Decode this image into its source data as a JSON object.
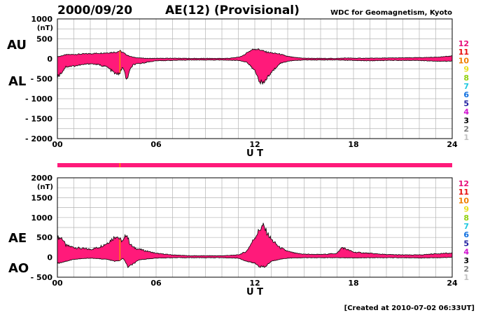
{
  "header": {
    "date": "2000/09/20",
    "title": "AE(12) (Provisional)",
    "source": "WDC for Geomagnetism, Kyoto"
  },
  "footer": {
    "created": "[Created at 2010-07-02 06:33UT]"
  },
  "legend": {
    "items": [
      {
        "label": "12",
        "color": "#e8107a"
      },
      {
        "label": "11",
        "color": "#e81010"
      },
      {
        "label": "10",
        "color": "#f08000"
      },
      {
        "label": "9",
        "color": "#e8e020"
      },
      {
        "label": "8",
        "color": "#90d010"
      },
      {
        "label": "7",
        "color": "#20c8e0"
      },
      {
        "label": "6",
        "color": "#1070e0"
      },
      {
        "label": "5",
        "color": "#2020a0"
      },
      {
        "label": "4",
        "color": "#d010d0"
      },
      {
        "label": "3",
        "color": "#000000"
      },
      {
        "label": "2",
        "color": "#808080"
      },
      {
        "label": "1",
        "color": "#c0c0c0"
      }
    ]
  },
  "coverage_bar": {
    "color": "#ff1a7a"
  },
  "chart_data": [
    {
      "type": "area",
      "unit": "(nT)",
      "upper_label": "AU",
      "lower_label": "AL",
      "xlabel": "U T",
      "xlim": [
        0,
        24
      ],
      "ylim": [
        -2000,
        1000
      ],
      "yticks": [
        1000,
        500,
        0,
        -500,
        -1000,
        -1500,
        -2000
      ],
      "ytick_labels": [
        "1000",
        "500",
        "0",
        "- 500",
        "- 1000",
        "- 1500",
        "- 2000"
      ],
      "xticks": [
        0,
        6,
        12,
        18,
        24
      ],
      "xtick_labels": [
        "00",
        "06",
        "12",
        "18",
        "24"
      ],
      "fill_color": "#ff1a7a",
      "series": [
        {
          "name": "AU",
          "x": [
            0,
            0.5,
            1,
            1.5,
            2,
            2.5,
            3,
            3.3,
            3.6,
            3.8,
            4,
            4.3,
            4.6,
            5,
            5.5,
            6,
            7,
            8,
            9,
            10,
            10.5,
            11,
            11.3,
            11.5,
            11.8,
            12,
            12.3,
            12.6,
            13,
            13.5,
            14,
            14.5,
            15,
            16,
            17,
            17.5,
            18,
            19,
            20,
            21,
            22,
            23,
            24
          ],
          "values": [
            50,
            100,
            110,
            120,
            130,
            140,
            150,
            160,
            170,
            200,
            150,
            80,
            40,
            20,
            10,
            10,
            15,
            10,
            10,
            10,
            15,
            40,
            80,
            150,
            220,
            250,
            230,
            180,
            150,
            120,
            60,
            30,
            15,
            10,
            10,
            20,
            15,
            15,
            20,
            25,
            30,
            40,
            70
          ]
        },
        {
          "name": "AL",
          "x": [
            0,
            0.3,
            0.5,
            1,
            1.5,
            2,
            2.5,
            3,
            3.3,
            3.6,
            3.8,
            4,
            4.2,
            4.4,
            4.6,
            5,
            5.5,
            6,
            7,
            8,
            9,
            10,
            11,
            11.5,
            12,
            12.3,
            12.5,
            12.7,
            13,
            13.5,
            14,
            14.5,
            15,
            16,
            17,
            18,
            19,
            20,
            21,
            22,
            23,
            23.5,
            24
          ],
          "values": [
            -450,
            -320,
            -200,
            -180,
            -150,
            -120,
            -150,
            -200,
            -300,
            -400,
            -350,
            -200,
            -550,
            -300,
            -150,
            -120,
            -80,
            -50,
            -40,
            -30,
            -30,
            -30,
            -40,
            -80,
            -300,
            -550,
            -650,
            -500,
            -350,
            -120,
            -60,
            -40,
            -30,
            -30,
            -30,
            -40,
            -50,
            -40,
            -40,
            -40,
            -60,
            -60,
            -60
          ]
        }
      ]
    },
    {
      "type": "area",
      "unit": "(nT)",
      "upper_label": "AE",
      "lower_label": "AO",
      "xlabel": "U T",
      "xlim": [
        0,
        24
      ],
      "ylim": [
        -500,
        2000
      ],
      "yticks": [
        2000,
        1500,
        1000,
        500,
        0,
        -500
      ],
      "ytick_labels": [
        "2000",
        "1500",
        "1000",
        "500",
        "0",
        "- 500"
      ],
      "xticks": [
        0,
        6,
        12,
        18,
        24
      ],
      "xtick_labels": [
        "00",
        "06",
        "12",
        "18",
        "24"
      ],
      "fill_color": "#ff1a7a",
      "series": [
        {
          "name": "AE",
          "x": [
            0,
            0.3,
            0.5,
            1,
            1.5,
            2,
            2.5,
            3,
            3.3,
            3.6,
            3.8,
            4,
            4.2,
            4.4,
            4.6,
            5,
            5.5,
            6,
            7,
            8,
            9,
            10,
            11,
            11.5,
            12,
            12.3,
            12.5,
            12.7,
            13,
            13.5,
            14,
            14.5,
            15,
            16,
            17,
            17.3,
            17.6,
            18,
            19,
            20,
            21,
            22,
            23,
            23.5,
            24
          ],
          "values": [
            500,
            480,
            300,
            250,
            220,
            200,
            250,
            350,
            450,
            550,
            450,
            400,
            600,
            350,
            250,
            200,
            150,
            100,
            60,
            40,
            40,
            40,
            60,
            150,
            500,
            700,
            800,
            650,
            450,
            250,
            150,
            100,
            80,
            70,
            100,
            250,
            200,
            130,
            100,
            70,
            60,
            60,
            90,
            100,
            100
          ]
        },
        {
          "name": "AO",
          "x": [
            0,
            0.5,
            1,
            2,
            3,
            3.5,
            3.8,
            4,
            4.3,
            5,
            6,
            7,
            8,
            9,
            10,
            11,
            11.5,
            12,
            12.3,
            12.6,
            13,
            13.5,
            14,
            15,
            16,
            17,
            18,
            19,
            20,
            21,
            22,
            23,
            24
          ],
          "values": [
            -150,
            -100,
            -50,
            -20,
            -50,
            -100,
            -80,
            -20,
            -250,
            -60,
            -20,
            -10,
            -10,
            -10,
            -10,
            -20,
            -100,
            -150,
            -230,
            -250,
            -100,
            -50,
            -20,
            -10,
            -10,
            -10,
            -15,
            -10,
            -10,
            -10,
            -15,
            -10,
            0
          ]
        }
      ]
    }
  ]
}
